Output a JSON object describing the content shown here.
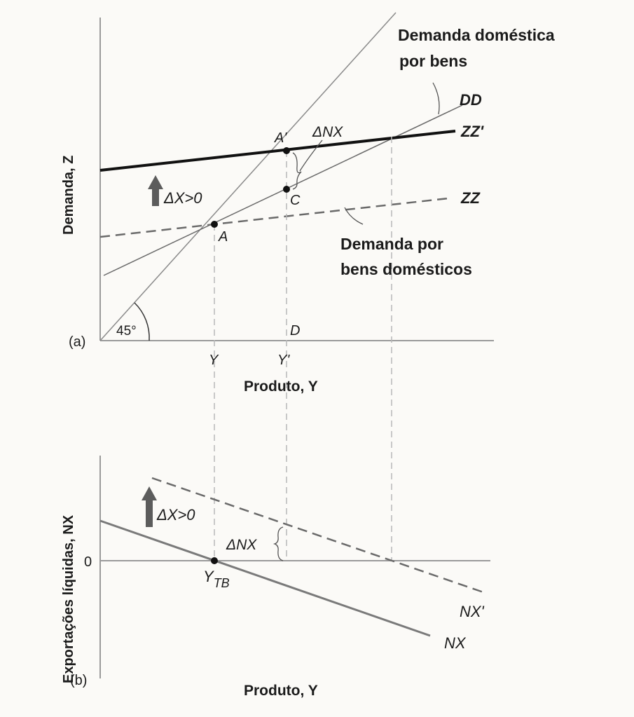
{
  "panel_a": {
    "panel_label": "(a)",
    "y_axis_label": "Demanda, Z",
    "x_axis_label": "Produto, Y",
    "tick_y": "Y",
    "tick_y_prime": "Y'",
    "angle_label": "45°",
    "label_dd": "DD",
    "label_zz_prime": "ZZ'",
    "label_zz": "ZZ",
    "label_a": "A",
    "label_a_prime": "A'",
    "label_c": "C",
    "label_d": "D",
    "delta_nx": "ΔNX",
    "delta_x": "ΔX>0",
    "callout_domestic_demand_line1": "Demanda doméstica",
    "callout_domestic_demand_line2": "por bens",
    "callout_demand_domestic_goods_line1": "Demanda por",
    "callout_demand_domestic_goods_line2": "bens domésticos"
  },
  "panel_b": {
    "panel_label": "(b)",
    "y_axis_label": "Exportações líquidas, NX",
    "x_axis_label": "Produto, Y",
    "zero_label": "0",
    "label_y_tb": "Y",
    "label_y_tb_sub": "TB",
    "label_nx": "NX",
    "label_nx_prime": "NX'",
    "delta_nx": "ΔNX",
    "delta_x": "ΔX>0"
  },
  "colors": {
    "axis": "#9a9a9a",
    "dd_line": "#5a5a5a",
    "zz_prime_line": "#111111",
    "zz_dashed": "#6a6a6a",
    "guide_dashed": "#b8b8b8",
    "arrow": "#5c5c5c"
  }
}
